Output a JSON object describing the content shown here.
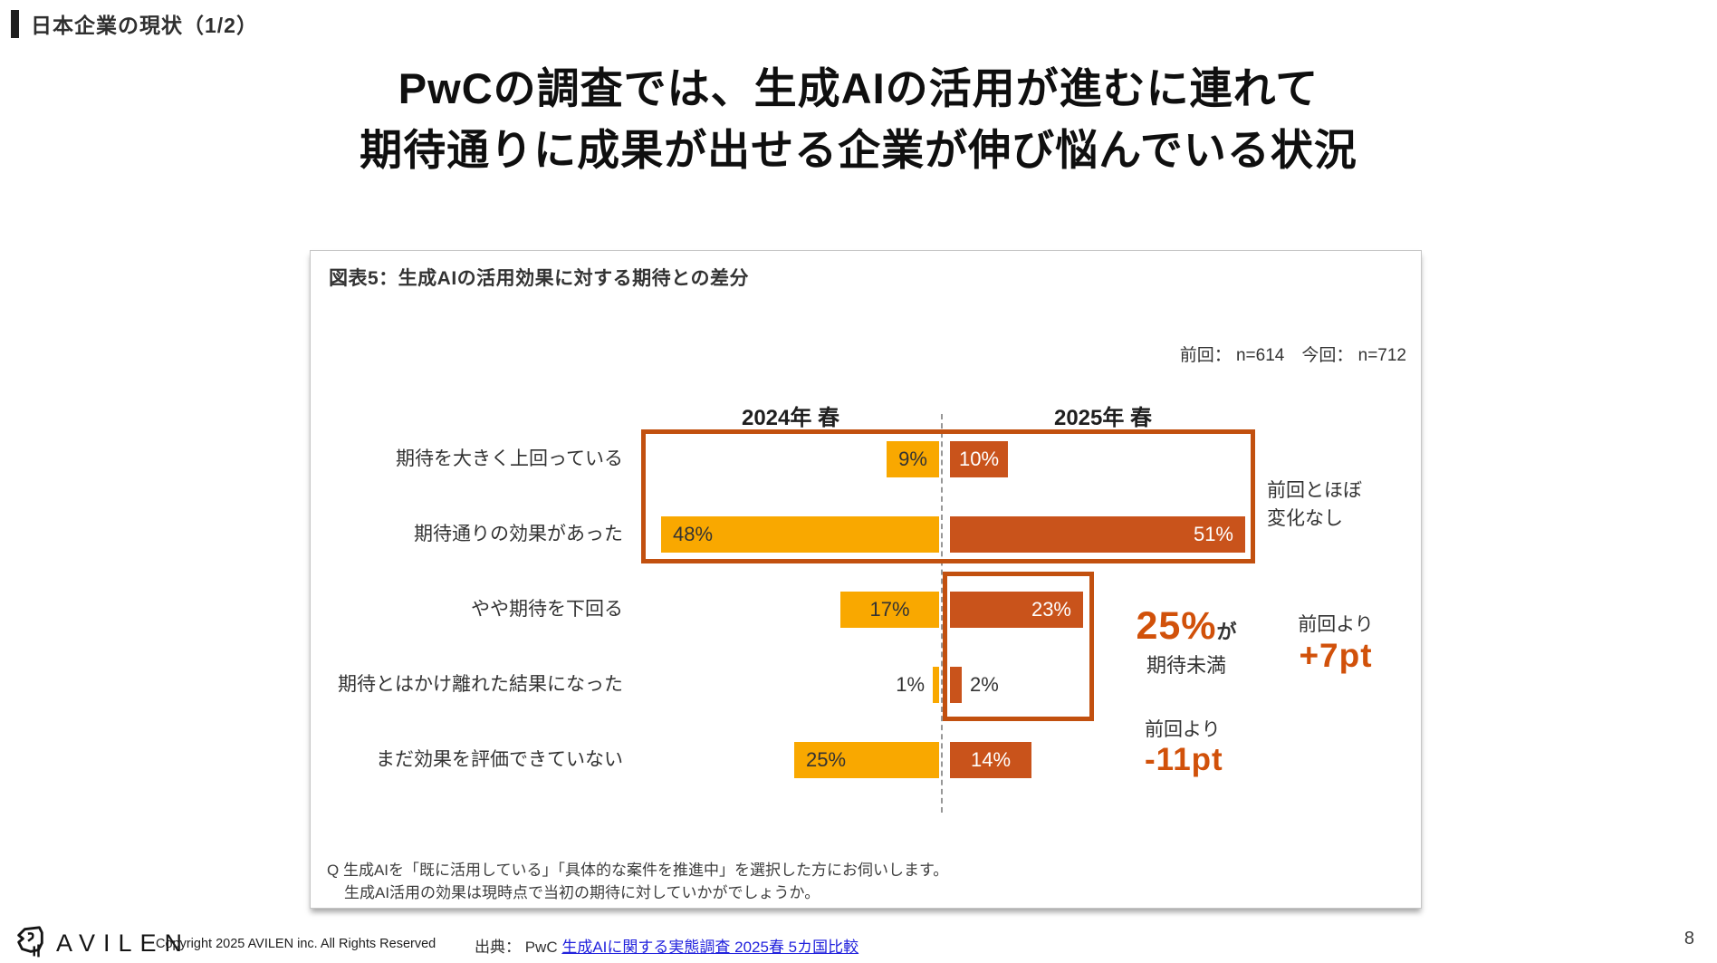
{
  "page": {
    "kicker": "日本企業の現状（1/2）",
    "title_line1": "PwCの調査では、生成AIの活用が進むに連れて",
    "title_line2": "期待通りに成果が出せる企業が伸び悩んでいる状況",
    "page_number": "8"
  },
  "panel": {
    "title": "図表5：生成AIの活用効果に対する期待との差分",
    "sample_note": "前回： n=614　今回： n=712",
    "question_line1": "Q 生成AIを「既に活用している」「具体的な案件を推進中」を選択した方にお伺いします。",
    "question_line2": "生成AI活用の効果は現時点で当初の期待に対していかがでしょうか。"
  },
  "annotations": {
    "no_change_line1": "前回とほぼ",
    "no_change_line2": "変化なし",
    "below_pct": "25%",
    "below_suffix": "が",
    "below_label": "期待未満",
    "vs_prev_up_label": "前回より",
    "vs_prev_up_value": "+7pt",
    "vs_prev_down_label": "前回より",
    "vs_prev_down_value": "-11pt"
  },
  "chart_data": {
    "type": "bar",
    "orientation": "horizontal-diverging",
    "title": "図表5：生成AIの活用効果に対する期待との差分",
    "unit": "%",
    "categories": [
      "期待を大きく上回っている",
      "期待通りの効果があった",
      "やや期待を下回る",
      "期待とはかけ離れた結果になった",
      "まだ効果を評価できていない"
    ],
    "series": [
      {
        "key": "2024",
        "name": "2024年 春",
        "values": [
          9,
          48,
          17,
          1,
          25
        ],
        "color": "#f9a800",
        "label_color": "#333333"
      },
      {
        "key": "2025",
        "name": "2025年 春",
        "values": [
          10,
          51,
          23,
          2,
          14
        ],
        "color": "#c9531b",
        "label_color": "#ffffff"
      }
    ],
    "sample_sizes": {
      "previous": "n=614",
      "current": "n=712"
    },
    "legend_position": "column-headers",
    "grid": false
  },
  "footer": {
    "brand": "AVILEN",
    "copyright": "Copyright 2025 AVILEN inc. All Rights Reserved",
    "source_prefix": "出典： PwC ",
    "source_link_text": "生成AIに関する実態調査 2025春 5カ国比較"
  },
  "colors": {
    "bar_yellow": "#f9a800",
    "bar_orange": "#c9531b",
    "box_border": "#c2500f",
    "accent_text": "#d1510a",
    "link_blue": "#2222dd",
    "kicker_bar": "#1f1f1f"
  }
}
